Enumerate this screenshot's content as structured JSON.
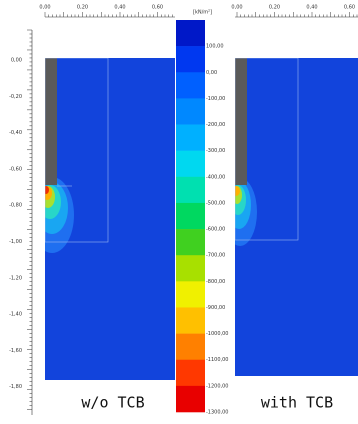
{
  "left_panel": {
    "x_ruler": [
      "0,00",
      "0,20",
      "0,40",
      "0,60"
    ],
    "y_ruler": [
      "0,00",
      "-0,20",
      "-0,40",
      "-0,60",
      "-0,80",
      "-1,00",
      "-1,20",
      "-1,40",
      "-1,60",
      "-1,80"
    ],
    "caption": "w/o TCB"
  },
  "right_panel": {
    "x_ruler": [
      "0,00",
      "0,20",
      "0,40",
      "0,60"
    ],
    "caption": "with TCB"
  },
  "legend": {
    "unit": "[kN/m²]",
    "labels": [
      "100,00",
      "0,00",
      "-100,00",
      "-200,00",
      "-300,00",
      "-400,00",
      "-500,00",
      "-600,00",
      "-700,00",
      "-800,00",
      "-900,00",
      "-1000,00",
      "-1100,00",
      "-1200,00",
      "-1300,00"
    ]
  }
}
